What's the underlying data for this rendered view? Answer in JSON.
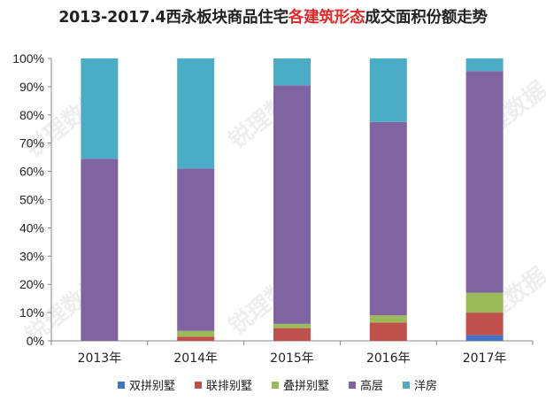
{
  "title": {
    "part1": "2013-2017.4西永板块商品住宅",
    "highlight": "各建筑形态",
    "part2": "成交面积份额走势"
  },
  "watermark_text": "锐理数据",
  "chart_data": {
    "type": "bar",
    "stacked": "percent",
    "categories": [
      "2013年",
      "2014年",
      "2015年",
      "2016年",
      "2017年"
    ],
    "series": [
      {
        "name": "双拼别墅",
        "color": "#4472c4",
        "values": [
          0,
          0,
          0,
          0,
          2
        ]
      },
      {
        "name": "联排别墅",
        "color": "#c0504d",
        "values": [
          0,
          1.5,
          4.5,
          6.5,
          8
        ]
      },
      {
        "name": "叠拼别墅",
        "color": "#9bbb59",
        "values": [
          0,
          2,
          1.5,
          2.5,
          7
        ]
      },
      {
        "name": "高层",
        "color": "#8064a2",
        "values": [
          64.5,
          57.5,
          84.5,
          68.5,
          78.5
        ]
      },
      {
        "name": "洋房",
        "color": "#4bacc6",
        "values": [
          35.5,
          39,
          9.5,
          22.5,
          4.5
        ]
      }
    ],
    "yticks": [
      "0%",
      "10%",
      "20%",
      "30%",
      "40%",
      "50%",
      "60%",
      "70%",
      "80%",
      "90%",
      "100%"
    ],
    "ylim": [
      0,
      100
    ],
    "legend": "bottom",
    "grid": false
  }
}
